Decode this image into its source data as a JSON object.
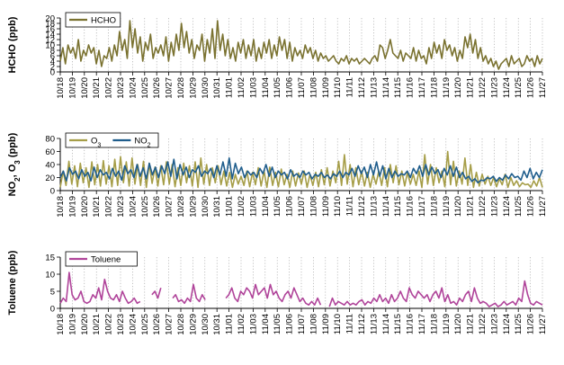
{
  "dates": [
    "10/18",
    "10/19",
    "10/20",
    "10/21",
    "10/22",
    "10/23",
    "10/24",
    "10/25",
    "10/26",
    "10/27",
    "10/28",
    "10/29",
    "10/30",
    "10/31",
    "11/01",
    "11/02",
    "11/03",
    "11/04",
    "11/05",
    "11/06",
    "11/07",
    "11/08",
    "11/09",
    "11/10",
    "11/11",
    "11/12",
    "11/13",
    "11/14",
    "11/15",
    "11/16",
    "11/17",
    "11/18",
    "11/19",
    "11/20",
    "11/21",
    "11/22",
    "11/23",
    "11/24",
    "11/25",
    "11/26",
    "11/27"
  ],
  "chart_data": [
    {
      "type": "line",
      "ylabel": "HCHO (ppb)",
      "yticks": [
        0,
        2,
        4,
        6,
        8,
        10,
        12,
        14,
        16,
        18,
        20
      ],
      "ylim": [
        0,
        20
      ],
      "legend": [
        {
          "label": "HCHO",
          "sub": "",
          "color": "#7a7230"
        }
      ],
      "series": [
        {
          "name": "HCHO",
          "color": "#7a7230",
          "values": [
            4,
            9,
            3,
            10,
            7,
            9,
            5,
            12,
            4,
            8,
            6,
            10,
            7,
            9,
            3,
            8,
            2,
            6,
            5,
            9,
            4,
            10,
            6,
            15,
            8,
            12,
            5,
            19,
            9,
            16,
            7,
            13,
            4,
            11,
            8,
            14,
            5,
            9,
            7,
            10,
            6,
            13,
            4,
            11,
            6,
            14,
            8,
            18,
            9,
            15,
            7,
            12,
            5,
            10,
            8,
            14,
            4,
            12,
            7,
            16,
            5,
            19,
            8,
            14,
            6,
            12,
            5,
            9,
            4,
            11,
            7,
            12,
            5,
            10,
            6,
            12,
            4,
            9,
            5,
            11,
            7,
            12,
            5,
            10,
            6,
            13,
            8,
            12,
            5,
            11,
            4,
            9,
            6,
            8,
            5,
            10,
            7,
            9,
            5,
            8,
            4,
            7,
            5,
            6,
            4,
            5,
            6,
            4,
            3,
            5,
            4,
            6,
            3,
            5,
            4,
            5,
            3,
            4,
            5,
            4,
            3,
            5,
            6,
            4,
            10,
            9,
            5,
            8,
            12,
            7,
            6,
            5,
            8,
            4,
            7,
            6,
            5,
            9,
            4,
            8,
            5,
            6,
            3,
            9,
            5,
            11,
            7,
            10,
            5,
            12,
            8,
            10,
            6,
            9,
            4,
            8,
            5,
            13,
            9,
            14,
            7,
            12,
            5,
            9,
            4,
            6,
            3,
            5,
            2,
            4,
            1,
            3,
            4,
            5,
            2,
            6,
            3,
            4,
            5,
            2,
            3,
            6,
            4,
            5,
            2,
            6,
            3,
            5
          ]
        }
      ]
    },
    {
      "type": "line",
      "ylabel": "NO",
      "yticks": [
        0,
        20,
        40,
        60,
        80
      ],
      "ylim": [
        0,
        80
      ],
      "legend": [
        {
          "label": "O",
          "sub": "3",
          "color": "#a69e48"
        },
        {
          "label": "NO",
          "sub": "2",
          "color": "#1f5d8c"
        }
      ],
      "series": [
        {
          "name": "O3",
          "color": "#a69e48",
          "values": [
            5,
            30,
            8,
            45,
            10,
            38,
            6,
            42,
            12,
            35,
            5,
            44,
            9,
            40,
            7,
            46,
            10,
            38,
            6,
            48,
            8,
            52,
            12,
            44,
            7,
            50,
            10,
            40,
            8,
            45,
            5,
            42,
            11,
            36,
            7,
            38,
            9,
            44,
            10,
            40,
            6,
            35,
            8,
            42,
            12,
            38,
            7,
            44,
            5,
            50,
            10,
            40,
            8,
            35,
            12,
            38,
            9,
            30,
            7,
            28,
            5,
            25,
            10,
            22,
            8,
            30,
            6,
            28,
            9,
            35,
            7,
            30,
            5,
            36,
            8,
            28,
            6,
            33,
            9,
            25,
            5,
            30,
            7,
            27,
            10,
            30,
            5,
            25,
            8,
            28,
            6,
            32,
            9,
            35,
            7,
            30,
            12,
            45,
            8,
            55,
            10,
            40,
            6,
            35,
            9,
            30,
            7,
            28,
            5,
            25,
            10,
            30,
            8,
            35,
            6,
            40,
            12,
            38,
            9,
            30,
            7,
            28,
            10,
            25,
            8,
            30,
            5,
            55,
            10,
            40,
            8,
            35,
            12,
            30,
            6,
            60,
            9,
            45,
            7,
            30,
            10,
            50,
            8,
            40,
            5,
            28,
            7,
            25,
            10,
            22,
            8,
            20,
            6,
            18,
            9,
            25,
            5,
            20,
            8,
            15,
            6,
            12,
            9,
            10,
            5,
            15,
            7,
            20,
            5
          ]
        },
        {
          "name": "NO2",
          "color": "#1f5d8c",
          "values": [
            20,
            30,
            15,
            35,
            25,
            30,
            18,
            32,
            22,
            28,
            15,
            36,
            20,
            32,
            24,
            28,
            18,
            34,
            22,
            30,
            16,
            38,
            26,
            32,
            20,
            40,
            22,
            35,
            18,
            42,
            24,
            36,
            20,
            38,
            26,
            44,
            22,
            48,
            18,
            40,
            24,
            36,
            20,
            32,
            28,
            38,
            22,
            30,
            26,
            34,
            20,
            38,
            24,
            44,
            22,
            50,
            18,
            42,
            26,
            36,
            20,
            30,
            24,
            28,
            20,
            34,
            26,
            40,
            22,
            36,
            20,
            30,
            24,
            28,
            18,
            32,
            22,
            26,
            20,
            30,
            24,
            28,
            18,
            25,
            22,
            28,
            20,
            24,
            18,
            26,
            22,
            30,
            20,
            28,
            24,
            34,
            22,
            38,
            26,
            36,
            20,
            40,
            24,
            44,
            22,
            38,
            18,
            34,
            20,
            30,
            22,
            26,
            24,
            30,
            20,
            34,
            26,
            38,
            22,
            40,
            24,
            36,
            26,
            32,
            20,
            34,
            24,
            38,
            22,
            36,
            20,
            28,
            18,
            22,
            14,
            18,
            12,
            16,
            15,
            20,
            18,
            22,
            14,
            20,
            16,
            24,
            18,
            26,
            20,
            22,
            16,
            30,
            20,
            34,
            18,
            28,
            20,
            32
          ]
        }
      ]
    },
    {
      "type": "line",
      "ylabel": "Toluene (ppb)",
      "yticks": [
        0,
        5,
        10,
        15
      ],
      "ylim": [
        0,
        15
      ],
      "legend": [
        {
          "label": "Toluene",
          "sub": "",
          "color": "#b0449a"
        }
      ],
      "series": [
        {
          "name": "Toluene",
          "color": "#b0449a",
          "values": [
            1.5,
            3,
            2,
            10.5,
            4,
            2.5,
            3,
            5,
            2,
            1.5,
            2,
            4,
            3,
            6,
            2.5,
            8.5,
            5,
            3,
            2.5,
            4,
            2,
            5,
            3,
            1.5,
            2,
            3,
            1.5,
            2,
            null,
            null,
            null,
            4,
            5,
            3,
            6,
            null,
            null,
            null,
            3,
            4,
            2,
            2.5,
            1.5,
            3,
            2,
            7,
            3,
            2,
            4,
            2.5,
            null,
            null,
            5,
            null,
            null,
            null,
            3,
            4,
            6,
            3,
            2,
            5,
            4,
            6,
            5,
            3,
            7,
            4,
            5,
            6,
            3,
            7,
            4,
            5,
            3,
            2,
            4,
            5,
            3,
            6,
            4,
            2,
            3,
            1.5,
            1,
            2,
            1,
            3,
            1,
            null,
            null,
            0.5,
            3,
            1,
            2,
            1.5,
            1,
            2,
            1,
            1.5,
            1,
            2,
            2.5,
            1,
            2,
            1.5,
            3,
            2,
            4,
            2,
            3,
            1.5,
            4,
            2,
            3,
            5,
            3,
            2,
            6,
            4,
            3,
            5,
            4,
            3,
            4,
            2,
            4,
            5,
            3,
            6,
            2,
            4,
            1.5,
            2,
            1,
            3,
            2,
            4,
            5,
            2,
            6,
            3,
            1.5,
            2,
            1.5,
            0.5,
            1,
            1.5,
            0.5,
            1,
            2,
            1,
            1.5,
            2,
            1,
            3,
            2,
            8,
            4,
            1.5,
            1,
            2,
            1.5,
            1
          ]
        }
      ]
    }
  ]
}
